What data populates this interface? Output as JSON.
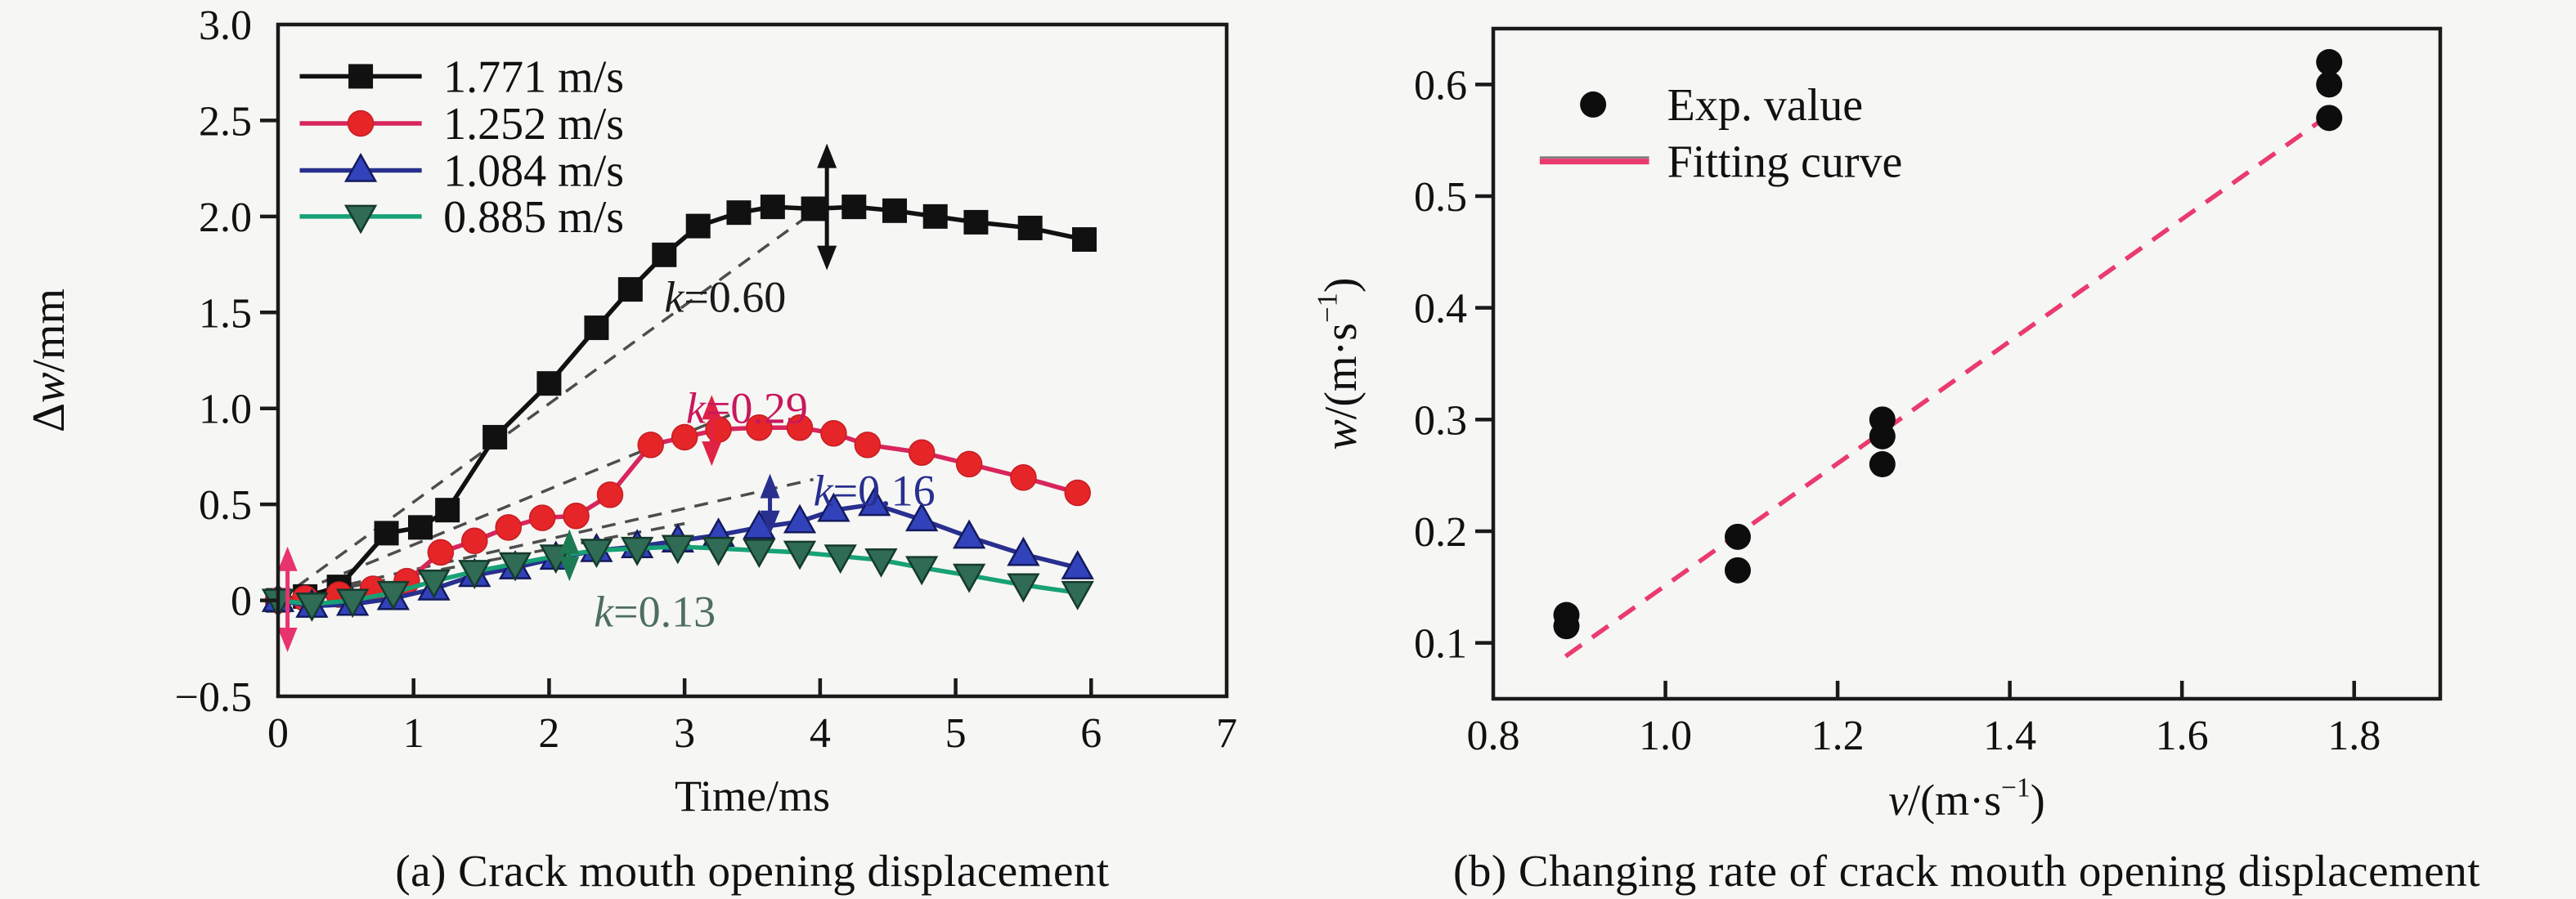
{
  "figure": {
    "background": "#f6f6f4",
    "axis_color": "#1a1a1a"
  },
  "captions": {
    "a": "(a) Crack mouth opening displacement",
    "b": "(b) Changing rate of crack mouth opening displacement"
  },
  "chart_data": [
    {
      "id": "a",
      "type": "line",
      "caption": "(a) Crack mouth opening displacement",
      "xlabel_parts": [
        {
          "t": "Time/ms"
        }
      ],
      "ylabel_parts": [
        {
          "t": "Δ"
        },
        {
          "t": "w",
          "i": true
        },
        {
          "t": "/mm"
        }
      ],
      "xlim": [
        0,
        7
      ],
      "ylim": [
        -0.5,
        3.0
      ],
      "xticks": [
        {
          "v": 0,
          "label": "0"
        },
        {
          "v": 1,
          "label": "1"
        },
        {
          "v": 2,
          "label": "2"
        },
        {
          "v": 3,
          "label": "3"
        },
        {
          "v": 4,
          "label": "4"
        },
        {
          "v": 5,
          "label": "5"
        },
        {
          "v": 6,
          "label": "6"
        },
        {
          "v": 7,
          "label": "7"
        }
      ],
      "yticks": [
        {
          "v": -0.5,
          "label": "−0.5"
        },
        {
          "v": 0,
          "label": "0"
        },
        {
          "v": 0.5,
          "label": "0.5"
        },
        {
          "v": 1.0,
          "label": "1.0"
        },
        {
          "v": 1.5,
          "label": "1.5"
        },
        {
          "v": 2.0,
          "label": "2.0"
        },
        {
          "v": 2.5,
          "label": "2.5"
        },
        {
          "v": 3.0,
          "label": "3.0"
        }
      ],
      "series": [
        {
          "name": "1.771 m/s",
          "marker": "square",
          "line_color": "#111111",
          "marker_color": "#111111",
          "marker_edge": "#111111",
          "x": [
            0,
            0.2,
            0.45,
            0.8,
            1.05,
            1.25,
            1.6,
            2.0,
            2.35,
            2.6,
            2.85,
            3.1,
            3.4,
            3.65,
            3.95,
            4.25,
            4.55,
            4.85,
            5.15,
            5.55,
            5.95
          ],
          "y": [
            0,
            0.02,
            0.07,
            0.35,
            0.38,
            0.47,
            0.85,
            1.13,
            1.42,
            1.62,
            1.8,
            1.95,
            2.02,
            2.05,
            2.04,
            2.05,
            2.03,
            2.0,
            1.97,
            1.94,
            1.88
          ]
        },
        {
          "name": "1.252 m/s",
          "marker": "circle",
          "line_color": "#d8255b",
          "marker_color": "#e62528",
          "marker_edge": "#c41e24",
          "x": [
            0,
            0.2,
            0.45,
            0.7,
            0.95,
            1.2,
            1.45,
            1.7,
            1.95,
            2.2,
            2.45,
            2.75,
            3.0,
            3.25,
            3.55,
            3.85,
            4.1,
            4.35,
            4.75,
            5.1,
            5.5,
            5.9
          ],
          "y": [
            0,
            0.01,
            0.03,
            0.06,
            0.1,
            0.25,
            0.31,
            0.38,
            0.43,
            0.44,
            0.55,
            0.81,
            0.85,
            0.89,
            0.9,
            0.9,
            0.87,
            0.81,
            0.77,
            0.71,
            0.64,
            0.56
          ]
        },
        {
          "name": "1.084 m/s",
          "marker": "triangle-up",
          "line_color": "#282f8e",
          "marker_color": "#3142bb",
          "marker_edge": "#141a5e",
          "x": [
            0,
            0.25,
            0.55,
            0.85,
            1.15,
            1.45,
            1.75,
            2.05,
            2.35,
            2.65,
            2.95,
            3.25,
            3.55,
            3.85,
            4.1,
            4.4,
            4.75,
            5.1,
            5.5,
            5.9
          ],
          "y": [
            0,
            -0.03,
            -0.02,
            0.01,
            0.06,
            0.13,
            0.17,
            0.22,
            0.26,
            0.28,
            0.31,
            0.34,
            0.38,
            0.41,
            0.47,
            0.5,
            0.42,
            0.33,
            0.24,
            0.17
          ]
        },
        {
          "name": "0.885 m/s",
          "marker": "triangle-down",
          "line_color": "#17a176",
          "marker_color": "#2f6b55",
          "marker_edge": "#153a2c",
          "x": [
            0,
            0.25,
            0.55,
            0.85,
            1.15,
            1.45,
            1.75,
            2.05,
            2.35,
            2.65,
            2.95,
            3.25,
            3.55,
            3.85,
            4.15,
            4.45,
            4.75,
            5.1,
            5.5,
            5.9
          ],
          "y": [
            0,
            -0.02,
            0.0,
            0.04,
            0.1,
            0.15,
            0.19,
            0.23,
            0.26,
            0.27,
            0.28,
            0.27,
            0.26,
            0.25,
            0.23,
            0.21,
            0.17,
            0.13,
            0.08,
            0.04
          ]
        }
      ],
      "fit_lines": [
        {
          "from": [
            0,
            0
          ],
          "to": [
            4.1,
            2.1
          ],
          "color": "#4d4d4d"
        },
        {
          "from": [
            0,
            0
          ],
          "to": [
            3.35,
            0.97
          ],
          "color": "#4d4d4d"
        },
        {
          "from": [
            0,
            0
          ],
          "to": [
            3.95,
            0.63
          ],
          "color": "#4d4d4d"
        },
        {
          "from": [
            0,
            0
          ],
          "to": [
            3.0,
            0.4
          ],
          "color": "#4d4d4d"
        }
      ],
      "annotations": [
        {
          "parts": [
            {
              "t": "k",
              "i": true
            },
            {
              "t": "=0.60"
            }
          ],
          "x": 3.3,
          "y": 1.58,
          "color": "#1a1a1a"
        },
        {
          "parts": [
            {
              "t": "k",
              "i": true
            },
            {
              "t": "=0.29"
            }
          ],
          "x": 3.46,
          "y": 1.0,
          "color": "#c8175d"
        },
        {
          "parts": [
            {
              "t": "k",
              "i": true
            },
            {
              "t": "=0.16"
            }
          ],
          "x": 4.4,
          "y": 0.57,
          "color": "#282f8e"
        },
        {
          "parts": [
            {
              "t": "k",
              "i": true
            },
            {
              "t": "=0.13"
            }
          ],
          "x": 2.78,
          "y": -0.06,
          "color": "#4e6e5e"
        }
      ],
      "arrows": [
        {
          "x": 0.07,
          "y1": -0.27,
          "y2": 0.28,
          "color": "#e8336e"
        },
        {
          "x": 2.15,
          "y1": 0.1,
          "y2": 0.37,
          "color": "#1d7a52"
        },
        {
          "x": 3.2,
          "y1": 0.7,
          "y2": 1.07,
          "color": "#e02244"
        },
        {
          "x": 3.63,
          "y1": 0.34,
          "y2": 0.66,
          "color": "#282f8e"
        },
        {
          "x": 4.05,
          "y1": 1.72,
          "y2": 2.38,
          "color": "#111111"
        }
      ],
      "legend": {
        "sample_x1": 0.16,
        "sample_x2": 1.06,
        "label_x": 1.22,
        "rows_y": [
          2.73,
          2.485,
          2.24,
          2.0
        ]
      }
    },
    {
      "id": "b",
      "type": "scatter",
      "caption": "(b) Changing rate of crack mouth opening displacement",
      "xlabel_parts": [
        {
          "t": "v",
          "i": true
        },
        {
          "t": "/(m·s"
        },
        {
          "t": "−1",
          "sup": true
        },
        {
          "t": ")"
        }
      ],
      "ylabel_parts": [
        {
          "t": "w",
          "i": true
        },
        {
          "t": "/(m·s"
        },
        {
          "t": "−1",
          "sup": true
        },
        {
          "t": ")"
        }
      ],
      "xlim": [
        0.8,
        1.9
      ],
      "ylim": [
        0.05,
        0.65
      ],
      "xticks": [
        {
          "v": 0.8,
          "label": "0.8"
        },
        {
          "v": 1.0,
          "label": "1.0"
        },
        {
          "v": 1.2,
          "label": "1.2"
        },
        {
          "v": 1.4,
          "label": "1.4"
        },
        {
          "v": 1.6,
          "label": "1.6"
        },
        {
          "v": 1.8,
          "label": "1.8"
        }
      ],
      "yticks": [
        {
          "v": 0.1,
          "label": "0.1"
        },
        {
          "v": 0.2,
          "label": "0.2"
        },
        {
          "v": 0.3,
          "label": "0.3"
        },
        {
          "v": 0.4,
          "label": "0.4"
        },
        {
          "v": 0.5,
          "label": "0.5"
        },
        {
          "v": 0.6,
          "label": "0.6"
        }
      ],
      "points": {
        "marker": "circle",
        "color": "#0d0d0d",
        "x": [
          0.885,
          0.885,
          1.084,
          1.084,
          1.252,
          1.252,
          1.252,
          1.771,
          1.771,
          1.771
        ],
        "y": [
          0.115,
          0.125,
          0.165,
          0.195,
          0.26,
          0.285,
          0.3,
          0.57,
          0.6,
          0.62
        ]
      },
      "fit_line": {
        "from": [
          0.884,
          0.088
        ],
        "to": [
          1.775,
          0.575
        ],
        "color": "#ea3a6e"
      },
      "legend": {
        "items": [
          {
            "label": "Exp. value",
            "type": "marker"
          },
          {
            "label": "Fitting curve",
            "type": "line"
          }
        ],
        "marker_x": 0.916,
        "sample_x1": 0.854,
        "sample_x2": 0.981,
        "label_x": 1.002,
        "rows_y": [
          0.582,
          0.531
        ]
      }
    }
  ]
}
